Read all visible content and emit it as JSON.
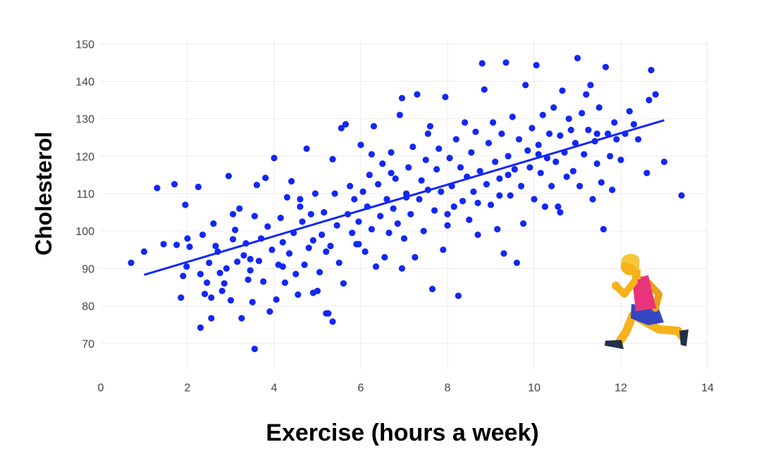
{
  "chart_data": {
    "type": "scatter",
    "title": "",
    "xlabel": "Exercise (hours a week)",
    "ylabel": "Cholesterol",
    "xlim": [
      0,
      14
    ],
    "ylim": [
      63,
      151
    ],
    "x_ticks": [
      0,
      2,
      4,
      6,
      8,
      10,
      12,
      14
    ],
    "y_ticks": [
      70,
      80,
      90,
      100,
      110,
      120,
      130,
      140,
      150
    ],
    "grid": true,
    "legend": "none",
    "colors": {
      "points": "#1327f5",
      "trendline": "#1327f5",
      "grid": "#ebebeb"
    },
    "trendline": {
      "x": [
        1.0,
        13.0
      ],
      "y": [
        88.3,
        129.6
      ]
    },
    "series": [
      {
        "points": [
          [
            0.7,
            91.5
          ],
          [
            1.0,
            94.5
          ],
          [
            1.3,
            111.5
          ],
          [
            1.45,
            96.5
          ],
          [
            1.7,
            112.5
          ],
          [
            1.75,
            96.3
          ],
          [
            1.85,
            82.2
          ],
          [
            1.9,
            88.0
          ],
          [
            1.95,
            107.0
          ],
          [
            2.0,
            98.0
          ],
          [
            2.05,
            95.8
          ],
          [
            1.98,
            90.5
          ],
          [
            2.25,
            111.8
          ],
          [
            2.3,
            74.2
          ],
          [
            2.35,
            99.0
          ],
          [
            2.4,
            83.2
          ],
          [
            2.45,
            86.2
          ],
          [
            2.5,
            91.5
          ],
          [
            2.55,
            76.7
          ],
          [
            2.6,
            102.0
          ],
          [
            2.65,
            96.0
          ],
          [
            2.7,
            94.5
          ],
          [
            2.75,
            88.8
          ],
          [
            2.8,
            84.0
          ],
          [
            2.85,
            86.0
          ],
          [
            2.9,
            90.0
          ],
          [
            2.95,
            114.7
          ],
          [
            3.0,
            81.5
          ],
          [
            3.05,
            97.8
          ],
          [
            3.1,
            100.3
          ],
          [
            3.15,
            91.8
          ],
          [
            3.2,
            106.0
          ],
          [
            3.25,
            76.7
          ],
          [
            3.3,
            93.5
          ],
          [
            3.35,
            96.7
          ],
          [
            3.4,
            87.0
          ],
          [
            3.45,
            89.5
          ],
          [
            3.5,
            81.0
          ],
          [
            3.55,
            104.0
          ],
          [
            3.6,
            112.3
          ],
          [
            3.65,
            92.0
          ],
          [
            3.7,
            98.0
          ],
          [
            3.75,
            86.5
          ],
          [
            3.8,
            114.2
          ],
          [
            3.85,
            101.2
          ],
          [
            3.9,
            78.5
          ],
          [
            3.95,
            95.0
          ],
          [
            4.0,
            119.5
          ],
          [
            4.05,
            81.7
          ],
          [
            4.1,
            91.0
          ],
          [
            4.15,
            103.5
          ],
          [
            4.2,
            97.0
          ],
          [
            4.25,
            86.2
          ],
          [
            4.3,
            109.0
          ],
          [
            4.35,
            94.0
          ],
          [
            4.4,
            113.3
          ],
          [
            4.45,
            99.5
          ],
          [
            4.5,
            88.5
          ],
          [
            4.55,
            83.0
          ],
          [
            4.6,
            106.5
          ],
          [
            4.65,
            102.5
          ],
          [
            4.7,
            91.0
          ],
          [
            4.75,
            122.0
          ],
          [
            4.8,
            95.5
          ],
          [
            4.85,
            104.5
          ],
          [
            4.9,
            97.5
          ],
          [
            4.95,
            110.0
          ],
          [
            5.0,
            84.0
          ],
          [
            5.05,
            89.0
          ],
          [
            5.1,
            99.0
          ],
          [
            5.15,
            105.0
          ],
          [
            5.2,
            94.5
          ],
          [
            5.25,
            78.0
          ],
          [
            5.3,
            96.0
          ],
          [
            5.35,
            119.2
          ],
          [
            5.4,
            110.0
          ],
          [
            5.45,
            101.5
          ],
          [
            5.5,
            91.5
          ],
          [
            5.55,
            127.5
          ],
          [
            5.6,
            86.0
          ],
          [
            5.65,
            128.5
          ],
          [
            5.7,
            104.5
          ],
          [
            5.75,
            112.0
          ],
          [
            5.8,
            99.5
          ],
          [
            5.85,
            108.5
          ],
          [
            5.9,
            96.5
          ],
          [
            5.95,
            102.5
          ],
          [
            6.0,
            123.0
          ],
          [
            6.05,
            110.5
          ],
          [
            6.1,
            94.5
          ],
          [
            6.15,
            106.5
          ],
          [
            6.2,
            115.0
          ],
          [
            6.25,
            100.5
          ],
          [
            6.3,
            128.0
          ],
          [
            6.35,
            90.5
          ],
          [
            6.4,
            112.5
          ],
          [
            6.45,
            104.0
          ],
          [
            6.5,
            118.0
          ],
          [
            6.55,
            93.0
          ],
          [
            6.6,
            108.5
          ],
          [
            6.65,
            99.5
          ],
          [
            6.7,
            121.0
          ],
          [
            6.75,
            106.0
          ],
          [
            6.8,
            114.0
          ],
          [
            6.85,
            102.0
          ],
          [
            6.9,
            131.0
          ],
          [
            6.95,
            135.5
          ],
          [
            7.0,
            98.0
          ],
          [
            7.05,
            110.0
          ],
          [
            7.1,
            117.0
          ],
          [
            7.15,
            104.5
          ],
          [
            7.2,
            122.5
          ],
          [
            7.25,
            93.0
          ],
          [
            7.3,
            136.5
          ],
          [
            7.35,
            108.5
          ],
          [
            7.4,
            113.5
          ],
          [
            7.45,
            100.0
          ],
          [
            7.5,
            119.0
          ],
          [
            7.55,
            111.0
          ],
          [
            7.6,
            128.0
          ],
          [
            7.65,
            84.5
          ],
          [
            7.7,
            105.5
          ],
          [
            7.75,
            116.5
          ],
          [
            7.8,
            122.0
          ],
          [
            7.85,
            110.5
          ],
          [
            7.9,
            95.0
          ],
          [
            7.95,
            135.8
          ],
          [
            8.0,
            101.5
          ],
          [
            8.05,
            119.5
          ],
          [
            8.1,
            112.0
          ],
          [
            8.15,
            106.5
          ],
          [
            8.2,
            124.5
          ],
          [
            8.25,
            82.7
          ],
          [
            8.3,
            117.0
          ],
          [
            8.35,
            108.0
          ],
          [
            8.4,
            129.0
          ],
          [
            8.45,
            114.5
          ],
          [
            8.5,
            103.0
          ],
          [
            8.55,
            121.0
          ],
          [
            8.6,
            110.5
          ],
          [
            8.65,
            126.5
          ],
          [
            8.7,
            99.0
          ],
          [
            8.75,
            116.0
          ],
          [
            8.8,
            144.8
          ],
          [
            8.85,
            137.8
          ],
          [
            8.9,
            112.5
          ],
          [
            8.95,
            123.5
          ],
          [
            9.0,
            107.0
          ],
          [
            9.05,
            129.0
          ],
          [
            9.1,
            118.5
          ],
          [
            9.15,
            100.5
          ],
          [
            9.2,
            114.0
          ],
          [
            9.25,
            126.0
          ],
          [
            9.3,
            94.0
          ],
          [
            9.35,
            145.0
          ],
          [
            9.4,
            120.0
          ],
          [
            9.45,
            109.5
          ],
          [
            9.5,
            130.5
          ],
          [
            9.55,
            116.5
          ],
          [
            9.6,
            91.5
          ],
          [
            9.65,
            124.5
          ],
          [
            9.7,
            112.0
          ],
          [
            9.75,
            102.0
          ],
          [
            9.8,
            139.0
          ],
          [
            9.85,
            121.5
          ],
          [
            9.9,
            117.0
          ],
          [
            9.95,
            127.5
          ],
          [
            10.0,
            108.5
          ],
          [
            10.05,
            144.3
          ],
          [
            10.1,
            123.0
          ],
          [
            10.15,
            115.5
          ],
          [
            10.2,
            131.0
          ],
          [
            10.25,
            106.5
          ],
          [
            10.3,
            119.5
          ],
          [
            10.35,
            126.0
          ],
          [
            10.4,
            112.0
          ],
          [
            10.45,
            133.0
          ],
          [
            10.5,
            118.5
          ],
          [
            10.55,
            106.5
          ],
          [
            10.6,
            125.5
          ],
          [
            10.65,
            137.5
          ],
          [
            10.7,
            121.0
          ],
          [
            10.75,
            114.5
          ],
          [
            10.8,
            130.0
          ],
          [
            10.85,
            127.0
          ],
          [
            10.9,
            116.0
          ],
          [
            10.95,
            123.5
          ],
          [
            11.0,
            146.2
          ],
          [
            11.05,
            112.0
          ],
          [
            11.1,
            131.5
          ],
          [
            11.15,
            120.5
          ],
          [
            11.2,
            136.5
          ],
          [
            11.25,
            127.0
          ],
          [
            11.3,
            139.0
          ],
          [
            11.35,
            108.5
          ],
          [
            11.4,
            124.0
          ],
          [
            11.45,
            118.0
          ],
          [
            11.5,
            133.0
          ],
          [
            11.55,
            113.0
          ],
          [
            11.6,
            100.5
          ],
          [
            11.65,
            143.8
          ],
          [
            11.7,
            126.0
          ],
          [
            11.75,
            120.0
          ],
          [
            11.8,
            111.0
          ],
          [
            11.85,
            129.0
          ],
          [
            11.9,
            124.5
          ],
          [
            12.0,
            119.0
          ],
          [
            12.1,
            126.0
          ],
          [
            12.2,
            132.0
          ],
          [
            12.3,
            128.5
          ],
          [
            12.4,
            124.5
          ],
          [
            12.6,
            115.5
          ],
          [
            12.65,
            135.0
          ],
          [
            12.7,
            143.0
          ],
          [
            12.8,
            136.5
          ],
          [
            13.0,
            118.5
          ],
          [
            13.4,
            109.5
          ],
          [
            3.55,
            68.5
          ],
          [
            5.2,
            78.0
          ],
          [
            5.35,
            75.8
          ],
          [
            6.95,
            90.0
          ],
          [
            4.9,
            83.5
          ],
          [
            2.3,
            88.5
          ],
          [
            2.55,
            82.2
          ],
          [
            3.45,
            92.5
          ],
          [
            4.6,
            108.5
          ],
          [
            6.25,
            120.5
          ],
          [
            7.05,
            109.0
          ],
          [
            8.0,
            104.5
          ],
          [
            9.2,
            109.5
          ],
          [
            10.6,
            105.0
          ],
          [
            11.45,
            126.0
          ],
          [
            3.05,
            104.5
          ],
          [
            4.2,
            90.5
          ],
          [
            5.95,
            96.5
          ],
          [
            6.7,
            115.5
          ],
          [
            7.55,
            126.0
          ],
          [
            8.7,
            107.5
          ],
          [
            9.4,
            115.0
          ],
          [
            10.1,
            120.5
          ]
        ]
      }
    ]
  }
}
